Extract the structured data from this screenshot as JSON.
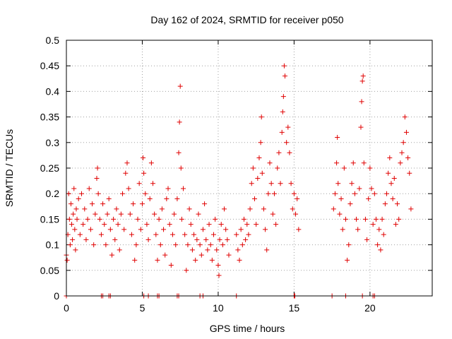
{
  "chart_data": {
    "type": "scatter",
    "title": "Day 162 of 2024, SRMTID for receiver p050",
    "xlabel": "GPS time / hours",
    "ylabel": "SRMTID / TECUs",
    "xlim": [
      0,
      24.1
    ],
    "ylim": [
      0,
      0.5
    ],
    "xticks": [
      0,
      5,
      10,
      15,
      20
    ],
    "xtick_labels": [
      "0",
      "5",
      "10",
      "15",
      "20"
    ],
    "yticks": [
      0,
      0.05,
      0.1,
      0.15,
      0.2,
      0.25,
      0.3,
      0.35,
      0.4,
      0.45,
      0.5
    ],
    "ytick_labels": [
      "0",
      "0.05",
      "0.1",
      "0.15",
      "0.2",
      "0.25",
      "0.3",
      "0.35",
      "0.4",
      "0.45",
      "0.5"
    ],
    "grid": true,
    "marker": "+",
    "series_color": "#e00000",
    "series": [
      {
        "name": "p050",
        "points": [
          [
            0.0,
            0.08
          ],
          [
            0.05,
            0.07
          ],
          [
            0.1,
            0.12
          ],
          [
            0.15,
            0.2
          ],
          [
            0.2,
            0.15
          ],
          [
            0.25,
            0.1
          ],
          [
            0.3,
            0.18
          ],
          [
            0.35,
            0.14
          ],
          [
            0.4,
            0.11
          ],
          [
            0.45,
            0.16
          ],
          [
            0.5,
            0.21
          ],
          [
            0.55,
            0.13
          ],
          [
            0.6,
            0.09
          ],
          [
            0.65,
            0.17
          ],
          [
            0.7,
            0.15
          ],
          [
            0.8,
            0.19
          ],
          [
            0.9,
            0.12
          ],
          [
            1.0,
            0.2
          ],
          [
            1.1,
            0.14
          ],
          [
            1.2,
            0.17
          ],
          [
            1.3,
            0.11
          ],
          [
            1.4,
            0.15
          ],
          [
            1.5,
            0.21
          ],
          [
            1.6,
            0.13
          ],
          [
            1.7,
            0.18
          ],
          [
            1.8,
            0.1
          ],
          [
            1.9,
            0.16
          ],
          [
            2.0,
            0.23
          ],
          [
            2.05,
            0.25
          ],
          [
            2.1,
            0.2
          ],
          [
            2.2,
            0.15
          ],
          [
            2.3,
            0.12
          ],
          [
            2.4,
            0.18
          ],
          [
            2.5,
            0.14
          ],
          [
            2.6,
            0.1
          ],
          [
            2.7,
            0.16
          ],
          [
            2.8,
            0.19
          ],
          [
            2.9,
            0.13
          ],
          [
            3.0,
            0.08
          ],
          [
            3.1,
            0.15
          ],
          [
            3.2,
            0.11
          ],
          [
            3.3,
            0.17
          ],
          [
            3.4,
            0.14
          ],
          [
            3.5,
            0.09
          ],
          [
            3.6,
            0.16
          ],
          [
            3.7,
            0.2
          ],
          [
            3.8,
            0.13
          ],
          [
            3.9,
            0.24
          ],
          [
            4.0,
            0.26
          ],
          [
            4.1,
            0.21
          ],
          [
            4.2,
            0.16
          ],
          [
            4.3,
            0.12
          ],
          [
            4.4,
            0.18
          ],
          [
            4.5,
            0.07
          ],
          [
            4.6,
            0.1
          ],
          [
            4.7,
            0.15
          ],
          [
            4.8,
            0.22
          ],
          [
            4.9,
            0.13
          ],
          [
            5.0,
            0.18
          ],
          [
            5.05,
            0.27
          ],
          [
            5.1,
            0.24
          ],
          [
            5.2,
            0.2
          ],
          [
            5.3,
            0.14
          ],
          [
            5.4,
            0.11
          ],
          [
            5.5,
            0.19
          ],
          [
            5.6,
            0.26
          ],
          [
            5.7,
            0.22
          ],
          [
            5.8,
            0.16
          ],
          [
            5.9,
            0.12
          ],
          [
            6.0,
            0.07
          ],
          [
            6.1,
            0.15
          ],
          [
            6.2,
            0.1
          ],
          [
            6.3,
            0.17
          ],
          [
            6.4,
            0.13
          ],
          [
            6.5,
            0.08
          ],
          [
            6.6,
            0.19
          ],
          [
            6.7,
            0.21
          ],
          [
            6.8,
            0.14
          ],
          [
            6.9,
            0.06
          ],
          [
            7.0,
            0.12
          ],
          [
            7.1,
            0.16
          ],
          [
            7.2,
            0.1
          ],
          [
            7.3,
            0.19
          ],
          [
            7.4,
            0.28
          ],
          [
            7.45,
            0.34
          ],
          [
            7.5,
            0.41
          ],
          [
            7.55,
            0.25
          ],
          [
            7.6,
            0.15
          ],
          [
            7.7,
            0.21
          ],
          [
            7.8,
            0.12
          ],
          [
            7.9,
            0.05
          ],
          [
            8.0,
            0.1
          ],
          [
            8.1,
            0.17
          ],
          [
            8.2,
            0.14
          ],
          [
            8.3,
            0.09
          ],
          [
            8.4,
            0.12
          ],
          [
            8.5,
            0.07
          ],
          [
            8.6,
            0.11
          ],
          [
            8.7,
            0.16
          ],
          [
            8.8,
            0.1
          ],
          [
            8.9,
            0.08
          ],
          [
            9.0,
            0.13
          ],
          [
            9.1,
            0.18
          ],
          [
            9.2,
            0.11
          ],
          [
            9.3,
            0.09
          ],
          [
            9.4,
            0.14
          ],
          [
            9.5,
            0.1
          ],
          [
            9.6,
            0.07
          ],
          [
            9.7,
            0.12
          ],
          [
            9.8,
            0.15
          ],
          [
            9.9,
            0.09
          ],
          [
            10.0,
            0.06
          ],
          [
            10.05,
            0.04
          ],
          [
            10.1,
            0.11
          ],
          [
            10.2,
            0.14
          ],
          [
            10.3,
            0.1
          ],
          [
            10.4,
            0.17
          ],
          [
            10.5,
            0.13
          ],
          [
            10.6,
            0.11
          ],
          [
            10.7,
            0.08
          ],
          [
            11.2,
            0.12
          ],
          [
            11.3,
            0.09
          ],
          [
            11.4,
            0.07
          ],
          [
            11.5,
            0.13
          ],
          [
            11.6,
            0.1
          ],
          [
            11.7,
            0.15
          ],
          [
            11.8,
            0.11
          ],
          [
            11.9,
            0.14
          ],
          [
            12.0,
            0.12
          ],
          [
            12.1,
            0.17
          ],
          [
            12.2,
            0.22
          ],
          [
            12.3,
            0.25
          ],
          [
            12.4,
            0.19
          ],
          [
            12.5,
            0.14
          ],
          [
            12.6,
            0.23
          ],
          [
            12.7,
            0.27
          ],
          [
            12.8,
            0.3
          ],
          [
            12.85,
            0.35
          ],
          [
            12.9,
            0.24
          ],
          [
            13.0,
            0.17
          ],
          [
            13.1,
            0.13
          ],
          [
            13.2,
            0.09
          ],
          [
            13.3,
            0.2
          ],
          [
            13.4,
            0.26
          ],
          [
            13.5,
            0.22
          ],
          [
            13.6,
            0.16
          ],
          [
            13.7,
            0.2
          ],
          [
            13.8,
            0.14
          ],
          [
            13.9,
            0.25
          ],
          [
            14.0,
            0.28
          ],
          [
            14.1,
            0.22
          ],
          [
            14.2,
            0.32
          ],
          [
            14.25,
            0.36
          ],
          [
            14.3,
            0.39
          ],
          [
            14.35,
            0.45
          ],
          [
            14.4,
            0.43
          ],
          [
            14.5,
            0.3
          ],
          [
            14.6,
            0.33
          ],
          [
            14.7,
            0.28
          ],
          [
            14.8,
            0.22
          ],
          [
            14.9,
            0.17
          ],
          [
            15.0,
            0.2
          ],
          [
            15.1,
            0.16
          ],
          [
            15.2,
            0.19
          ],
          [
            15.3,
            0.13
          ],
          [
            17.6,
            0.17
          ],
          [
            17.7,
            0.2
          ],
          [
            17.8,
            0.26
          ],
          [
            17.85,
            0.31
          ],
          [
            17.9,
            0.22
          ],
          [
            18.0,
            0.16
          ],
          [
            18.1,
            0.19
          ],
          [
            18.2,
            0.13
          ],
          [
            18.3,
            0.25
          ],
          [
            18.4,
            0.15
          ],
          [
            18.5,
            0.07
          ],
          [
            18.6,
            0.1
          ],
          [
            18.7,
            0.18
          ],
          [
            18.8,
            0.22
          ],
          [
            18.9,
            0.26
          ],
          [
            19.0,
            0.2
          ],
          [
            19.1,
            0.15
          ],
          [
            19.2,
            0.13
          ],
          [
            19.3,
            0.21
          ],
          [
            19.4,
            0.33
          ],
          [
            19.45,
            0.38
          ],
          [
            19.5,
            0.42
          ],
          [
            19.55,
            0.43
          ],
          [
            19.6,
            0.26
          ],
          [
            19.7,
            0.15
          ],
          [
            19.8,
            0.11
          ],
          [
            19.9,
            0.19
          ],
          [
            20.0,
            0.25
          ],
          [
            20.1,
            0.21
          ],
          [
            20.2,
            0.14
          ],
          [
            20.3,
            0.2
          ],
          [
            20.4,
            0.15
          ],
          [
            20.5,
            0.1
          ],
          [
            20.6,
            0.13
          ],
          [
            20.7,
            0.09
          ],
          [
            20.8,
            0.15
          ],
          [
            20.9,
            0.12
          ],
          [
            21.0,
            0.18
          ],
          [
            21.1,
            0.2
          ],
          [
            21.2,
            0.24
          ],
          [
            21.3,
            0.27
          ],
          [
            21.4,
            0.22
          ],
          [
            21.5,
            0.19
          ],
          [
            21.6,
            0.23
          ],
          [
            21.7,
            0.14
          ],
          [
            21.8,
            0.18
          ],
          [
            21.9,
            0.15
          ],
          [
            22.0,
            0.26
          ],
          [
            22.1,
            0.28
          ],
          [
            22.2,
            0.3
          ],
          [
            22.3,
            0.35
          ],
          [
            22.4,
            0.32
          ],
          [
            22.5,
            0.27
          ],
          [
            22.6,
            0.24
          ],
          [
            22.7,
            0.17
          ]
        ]
      }
    ],
    "zero_points": [
      [
        0.0,
        0
      ],
      [
        2.3,
        0
      ],
      [
        2.4,
        0
      ],
      [
        2.8,
        0
      ],
      [
        2.9,
        0
      ],
      [
        5.1,
        0
      ],
      [
        5.4,
        0
      ],
      [
        6.0,
        0
      ],
      [
        6.1,
        0
      ],
      [
        7.3,
        0
      ],
      [
        7.4,
        0
      ],
      [
        8.8,
        0
      ],
      [
        9.0,
        0
      ],
      [
        11.2,
        0
      ],
      [
        15.0,
        0
      ],
      [
        15.05,
        0
      ],
      [
        17.5,
        0
      ],
      [
        18.4,
        0
      ],
      [
        19.5,
        0
      ],
      [
        20.2,
        0
      ],
      [
        20.3,
        0
      ]
    ]
  }
}
